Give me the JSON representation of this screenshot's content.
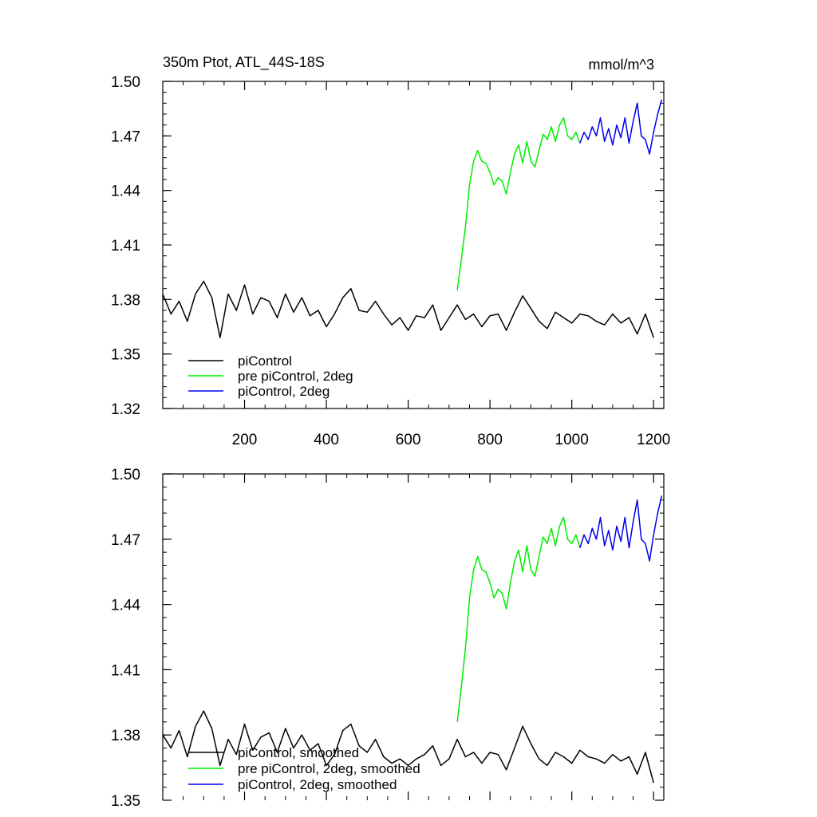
{
  "chart_data": [
    {
      "type": "line",
      "title": "350m Ptot, ATL_44S-18S",
      "units_label": "mmol/m^3",
      "xlim": [
        0,
        1225
      ],
      "ylim": [
        1.32,
        1.5
      ],
      "xticks": [
        200,
        400,
        600,
        800,
        1000,
        1200
      ],
      "xtick_labels": [
        "200",
        "400",
        "600",
        "800",
        "1000",
        "1200"
      ],
      "yticks": [
        1.32,
        1.35,
        1.38,
        1.41,
        1.44,
        1.47,
        1.5
      ],
      "ytick_labels": [
        "1.32",
        "1.35",
        "1.38",
        "1.41",
        "1.44",
        "1.47",
        "1.50"
      ],
      "grid": false,
      "legend_position": "bottom-left",
      "series": [
        {
          "name": "piControl",
          "color": "#000000",
          "x": [
            0,
            20,
            40,
            60,
            80,
            100,
            120,
            140,
            160,
            180,
            200,
            220,
            240,
            260,
            280,
            300,
            320,
            340,
            360,
            380,
            400,
            420,
            440,
            460,
            480,
            500,
            520,
            540,
            560,
            580,
            600,
            620,
            640,
            660,
            680,
            700,
            720,
            740,
            760,
            780,
            800,
            820,
            840,
            860,
            880,
            900,
            920,
            940,
            960,
            980,
            1000,
            1020,
            1040,
            1060,
            1080,
            1100,
            1120,
            1140,
            1160,
            1180,
            1200
          ],
          "y": [
            1.383,
            1.372,
            1.379,
            1.368,
            1.383,
            1.39,
            1.381,
            1.359,
            1.383,
            1.374,
            1.388,
            1.372,
            1.381,
            1.379,
            1.37,
            1.383,
            1.373,
            1.381,
            1.371,
            1.374,
            1.365,
            1.372,
            1.381,
            1.386,
            1.374,
            1.373,
            1.379,
            1.372,
            1.366,
            1.37,
            1.363,
            1.371,
            1.37,
            1.377,
            1.363,
            1.37,
            1.377,
            1.369,
            1.372,
            1.365,
            1.371,
            1.372,
            1.363,
            1.373,
            1.382,
            1.375,
            1.368,
            1.364,
            1.373,
            1.37,
            1.367,
            1.372,
            1.371,
            1.368,
            1.366,
            1.372,
            1.367,
            1.37,
            1.361,
            1.372,
            1.359
          ]
        },
        {
          "name": "pre piControl, 2deg",
          "color": "#00ee00",
          "x": [
            720,
            730,
            740,
            750,
            760,
            770,
            780,
            790,
            800,
            810,
            820,
            830,
            840,
            850,
            860,
            870,
            880,
            890,
            900,
            910,
            920,
            930,
            940,
            950,
            960,
            970,
            980,
            990,
            1000,
            1010,
            1020
          ],
          "y": [
            1.385,
            1.402,
            1.42,
            1.443,
            1.456,
            1.462,
            1.456,
            1.455,
            1.45,
            1.443,
            1.447,
            1.445,
            1.438,
            1.45,
            1.46,
            1.465,
            1.455,
            1.467,
            1.456,
            1.453,
            1.462,
            1.471,
            1.468,
            1.475,
            1.467,
            1.476,
            1.48,
            1.47,
            1.468,
            1.472,
            1.466
          ]
        },
        {
          "name": "piControl, 2deg",
          "color": "#0000ee",
          "x": [
            1020,
            1030,
            1040,
            1050,
            1060,
            1070,
            1080,
            1090,
            1100,
            1110,
            1120,
            1130,
            1140,
            1150,
            1160,
            1170,
            1180,
            1190,
            1200,
            1210,
            1220
          ],
          "y": [
            1.466,
            1.472,
            1.468,
            1.475,
            1.47,
            1.48,
            1.467,
            1.474,
            1.465,
            1.476,
            1.469,
            1.48,
            1.466,
            1.478,
            1.488,
            1.47,
            1.468,
            1.46,
            1.472,
            1.482,
            1.49
          ]
        }
      ]
    },
    {
      "type": "line",
      "title": "",
      "xlim": [
        0,
        1225
      ],
      "ylim": [
        1.35,
        1.5
      ],
      "xticks": [
        200,
        400,
        600,
        800,
        1000,
        1200
      ],
      "yticks": [
        1.35,
        1.38,
        1.41,
        1.44,
        1.47,
        1.5
      ],
      "ytick_labels": [
        "1.35",
        "1.38",
        "1.41",
        "1.44",
        "1.47",
        "1.50"
      ],
      "grid": false,
      "legend_position": "bottom-left",
      "series": [
        {
          "name": "piControl, smoothed",
          "color": "#000000",
          "x": [
            0,
            20,
            40,
            60,
            80,
            100,
            120,
            140,
            160,
            180,
            200,
            220,
            240,
            260,
            280,
            300,
            320,
            340,
            360,
            380,
            400,
            420,
            440,
            460,
            480,
            500,
            520,
            540,
            560,
            580,
            600,
            620,
            640,
            660,
            680,
            700,
            720,
            740,
            760,
            780,
            800,
            820,
            840,
            860,
            880,
            900,
            920,
            940,
            960,
            980,
            1000,
            1020,
            1040,
            1060,
            1080,
            1100,
            1120,
            1140,
            1160,
            1180,
            1200
          ],
          "y": [
            1.38,
            1.374,
            1.382,
            1.37,
            1.384,
            1.391,
            1.383,
            1.366,
            1.378,
            1.371,
            1.385,
            1.373,
            1.379,
            1.381,
            1.372,
            1.383,
            1.374,
            1.38,
            1.373,
            1.376,
            1.366,
            1.371,
            1.382,
            1.385,
            1.375,
            1.372,
            1.378,
            1.37,
            1.367,
            1.369,
            1.366,
            1.369,
            1.371,
            1.375,
            1.366,
            1.369,
            1.378,
            1.37,
            1.372,
            1.367,
            1.372,
            1.371,
            1.364,
            1.374,
            1.384,
            1.376,
            1.369,
            1.366,
            1.372,
            1.37,
            1.367,
            1.373,
            1.37,
            1.369,
            1.367,
            1.371,
            1.368,
            1.37,
            1.362,
            1.372,
            1.358
          ]
        },
        {
          "name": "pre piControl, 2deg, smoothed",
          "color": "#00ee00",
          "x": [
            720,
            730,
            740,
            750,
            760,
            770,
            780,
            790,
            800,
            810,
            820,
            830,
            840,
            850,
            860,
            870,
            880,
            890,
            900,
            910,
            920,
            930,
            940,
            950,
            960,
            970,
            980,
            990,
            1000,
            1010,
            1020
          ],
          "y": [
            1.386,
            1.402,
            1.42,
            1.443,
            1.456,
            1.462,
            1.456,
            1.455,
            1.45,
            1.443,
            1.447,
            1.445,
            1.438,
            1.45,
            1.46,
            1.465,
            1.455,
            1.467,
            1.456,
            1.453,
            1.462,
            1.471,
            1.468,
            1.475,
            1.467,
            1.476,
            1.48,
            1.47,
            1.468,
            1.472,
            1.466
          ]
        },
        {
          "name": "piControl, 2deg, smoothed",
          "color": "#0000ee",
          "x": [
            1020,
            1030,
            1040,
            1050,
            1060,
            1070,
            1080,
            1090,
            1100,
            1110,
            1120,
            1130,
            1140,
            1150,
            1160,
            1170,
            1180,
            1190,
            1200,
            1210,
            1220
          ],
          "y": [
            1.466,
            1.472,
            1.468,
            1.475,
            1.47,
            1.48,
            1.467,
            1.474,
            1.465,
            1.476,
            1.469,
            1.48,
            1.466,
            1.478,
            1.488,
            1.47,
            1.468,
            1.46,
            1.472,
            1.482,
            1.49
          ]
        }
      ]
    }
  ]
}
